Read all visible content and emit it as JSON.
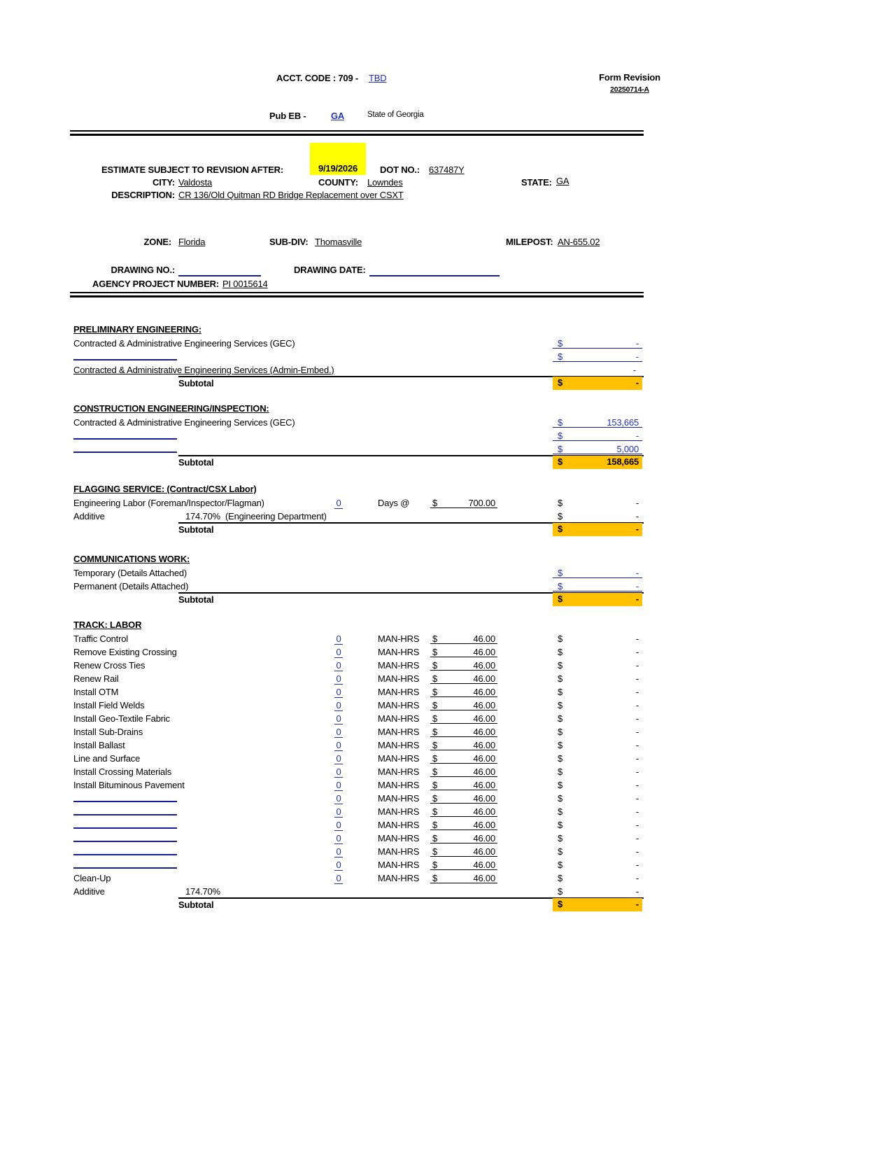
{
  "colors": {
    "link_blue": "#2230C3",
    "line_navy": "#141E9C",
    "subtotal_orange": "#FFC000",
    "highlight_yellow": "#FFFF00"
  },
  "header": {
    "acct_label": "ACCT. CODE : 709 -",
    "acct_value": "TBD",
    "form_revision_label": "Form Revision",
    "form_revision_value": "20250714-A",
    "pub_eb_label": "Pub EB -",
    "pub_eb_value": "GA",
    "state_note": "State of Georgia"
  },
  "project": {
    "revision_label": "ESTIMATE SUBJECT TO REVISION AFTER:",
    "revision_date": "9/19/2026",
    "dot_label": "DOT NO.:",
    "dot_value": "637487Y",
    "city_label": "CITY:",
    "city_value": "Valdosta",
    "county_label": "COUNTY:",
    "county_value": "Lowndes",
    "state_label": "STATE:",
    "state_value": "GA",
    "description_label": "DESCRIPTION:",
    "description_value": "CR 136/Old Quitman RD Bridge Replacement over CSXT",
    "zone_label": "ZONE:",
    "zone_value": "Florida",
    "subdiv_label": "SUB-DIV:",
    "subdiv_value": "Thomasville",
    "milepost_label": "MILEPOST:",
    "milepost_value": "AN-655.02",
    "drawing_no_label": "DRAWING NO.:",
    "drawing_date_label": "DRAWING DATE:",
    "agency_label": "AGENCY PROJECT NUMBER:",
    "agency_value": "PI 0015614"
  },
  "sections": {
    "preliminary": {
      "title": "PRELIMINARY ENGINEERING:",
      "rows": [
        {
          "label": "Contracted & Administrative Engineering Services (GEC)",
          "currency": "$",
          "amount": "-"
        },
        {
          "label": "",
          "currency": "$",
          "amount": "-"
        },
        {
          "label": "Contracted & Administrative Engineering Services (Admin-Embed.)",
          "currency": "",
          "amount": "-"
        }
      ],
      "subtotal": {
        "label": "Subtotal",
        "currency": "$",
        "value": "-"
      }
    },
    "construction": {
      "title": "CONSTRUCTION ENGINEERING/INSPECTION:",
      "rows": [
        {
          "label": "Contracted & Administrative Engineering Services (GEC)",
          "currency": "$",
          "amount": "153,665"
        },
        {
          "label": "",
          "currency": "$",
          "amount": "-"
        },
        {
          "label": "",
          "currency": "$",
          "amount": "5,000"
        }
      ],
      "subtotal": {
        "label": "Subtotal",
        "currency": "$",
        "value": "158,665"
      }
    },
    "flagging": {
      "title": "FLAGGING SERVICE: (Contract/CSX Labor)",
      "labor_row": {
        "label": "Engineering Labor (Foreman/Inspector/Flagman)",
        "qty": "0",
        "unit": "Days @",
        "rate_currency": "$",
        "rate": "700.00",
        "currency": "$",
        "amount": "-"
      },
      "additive_row": {
        "label": "Additive",
        "pct": "174.70%",
        "note": "(Engineering Department)",
        "currency": "$",
        "amount": "-"
      },
      "subtotal": {
        "label": "Subtotal",
        "currency": "$",
        "value": "-"
      }
    },
    "communications": {
      "title": "COMMUNICATIONS WORK:",
      "rows": [
        {
          "label": "Temporary (Details Attached)",
          "currency": "$",
          "amount": "-"
        },
        {
          "label": "Permanent (Details Attached)",
          "currency": "$",
          "amount": "-"
        }
      ],
      "subtotal": {
        "label": "Subtotal",
        "currency": "$",
        "value": "-"
      }
    },
    "track_labor": {
      "title": "TRACK:  LABOR",
      "qty": "0",
      "unit": "MAN-HRS",
      "rate_currency": "$",
      "rate": "46.00",
      "amount_currency": "$",
      "amount": "-",
      "row_labels": [
        "Traffic Control",
        "Remove Existing Crossing",
        "Renew Cross Ties",
        "Renew Rail",
        "Install OTM",
        "Install Field Welds",
        "Install Geo-Textile Fabric",
        "Install Sub-Drains",
        "Install Ballast",
        "Line and Surface",
        "Install Crossing Materials",
        "Install Bituminous Pavement",
        "",
        "",
        "",
        "",
        "",
        "",
        "Clean-Up"
      ],
      "additive_row": {
        "label": "Additive",
        "pct": "174.70%",
        "currency": "$",
        "amount": "-"
      },
      "subtotal": {
        "label": "Subtotal",
        "currency": "$",
        "value": "-"
      }
    }
  }
}
